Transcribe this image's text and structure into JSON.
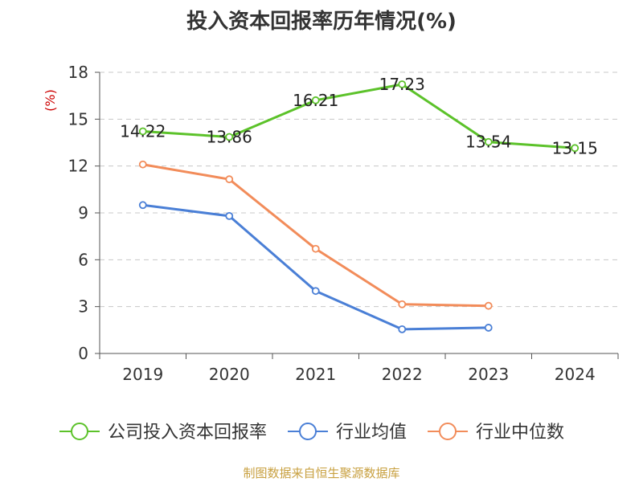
{
  "chart_data": {
    "type": "line",
    "title": "投入资本回报率历年情况(%)",
    "ylabel": "(%)",
    "xlabel": "",
    "categories": [
      "2019",
      "2020",
      "2021",
      "2022",
      "2023",
      "2024"
    ],
    "ylim": [
      0,
      18
    ],
    "yticks": [
      0,
      3,
      6,
      9,
      12,
      15,
      18
    ],
    "grid": true,
    "legend_position": "bottom",
    "series": [
      {
        "name": "公司投入资本回报率",
        "color": "#5cc22a",
        "show_labels": true,
        "values": [
          14.22,
          13.86,
          16.21,
          17.23,
          13.54,
          13.15
        ],
        "labels": [
          "14.22",
          "13.86",
          "16.21",
          "17.23",
          "13.54",
          "13.15"
        ]
      },
      {
        "name": "行业均值",
        "color": "#4a7fd6",
        "show_labels": false,
        "values": [
          9.5,
          8.8,
          4.0,
          1.55,
          1.65,
          null
        ]
      },
      {
        "name": "行业中位数",
        "color": "#f28c5a",
        "show_labels": false,
        "values": [
          12.1,
          11.15,
          6.7,
          3.15,
          3.05,
          null
        ]
      }
    ]
  },
  "source": "制图数据来自恒生聚源数据库"
}
